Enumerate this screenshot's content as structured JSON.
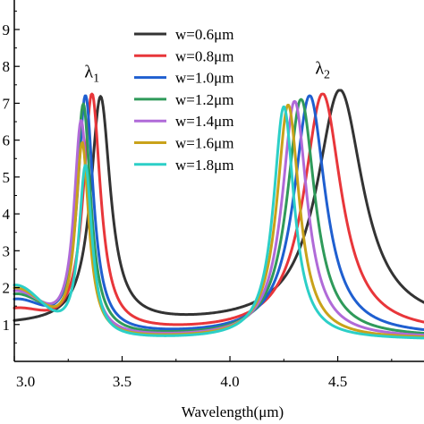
{
  "chart_data": {
    "type": "line",
    "title": "",
    "xlabel": "Wavelength(μm)",
    "ylabel": "",
    "xlim": [
      3.0,
      4.9
    ],
    "ylim": [
      0.0,
      0.98
    ],
    "x_ticks": [
      3.0,
      3.5,
      4.0,
      4.5
    ],
    "x_tick_labels": [
      "3.0",
      "3.5",
      "4.0",
      "4.5"
    ],
    "y_ticks": [
      0.1,
      0.2,
      0.3,
      0.4,
      0.5,
      0.6,
      0.7,
      0.8,
      0.9
    ],
    "y_tick_labels": [
      "1",
      "2",
      "3",
      "4",
      "5",
      "6",
      "7",
      "8",
      "9"
    ],
    "grid": false,
    "legend_position": "top-center",
    "annotations": [
      {
        "text": "λ",
        "sub": "1",
        "x": 3.36,
        "y": 0.77
      },
      {
        "text": "λ",
        "sub": "2",
        "x": 4.43,
        "y": 0.78
      }
    ],
    "series": [
      {
        "name": "w=0.6μm",
        "color": "#333333",
        "base": 0.085,
        "bmin": 3.03,
        "bw": 0.05,
        "p1": {
          "x": 3.4,
          "h": 0.71,
          "w": 0.055
        },
        "p2": {
          "x": 4.51,
          "h": 0.735,
          "w": 0.13
        },
        "v": 0.095
      },
      {
        "name": "w=0.8μm",
        "color": "#e8363a",
        "base": 0.13,
        "bmin": 3.04,
        "bw": 0.05,
        "p1": {
          "x": 3.36,
          "h": 0.72,
          "w": 0.048
        },
        "p2": {
          "x": 4.43,
          "h": 0.725,
          "w": 0.105
        },
        "v": 0.075
      },
      {
        "name": "w=1.0μm",
        "color": "#1f5fd0",
        "base": 0.155,
        "bmin": 3.05,
        "bw": 0.05,
        "p1": {
          "x": 3.33,
          "h": 0.715,
          "w": 0.044
        },
        "p2": {
          "x": 4.37,
          "h": 0.72,
          "w": 0.088
        },
        "v": 0.068
      },
      {
        "name": "w=1.2μm",
        "color": "#2f9a5a",
        "base": 0.17,
        "bmin": 3.06,
        "bw": 0.05,
        "p1": {
          "x": 3.32,
          "h": 0.69,
          "w": 0.042
        },
        "p2": {
          "x": 4.33,
          "h": 0.71,
          "w": 0.078
        },
        "v": 0.064
      },
      {
        "name": "w=1.4μm",
        "color": "#b06ad8",
        "base": 0.18,
        "bmin": 3.07,
        "bw": 0.05,
        "p1": {
          "x": 3.31,
          "h": 0.645,
          "w": 0.04
        },
        "p2": {
          "x": 4.3,
          "h": 0.705,
          "w": 0.07
        },
        "v": 0.062
      },
      {
        "name": "w=1.6μm",
        "color": "#c9a21a",
        "base": 0.19,
        "bmin": 3.08,
        "bw": 0.05,
        "p1": {
          "x": 3.315,
          "h": 0.585,
          "w": 0.038
        },
        "p2": {
          "x": 4.27,
          "h": 0.695,
          "w": 0.063
        },
        "v": 0.06
      },
      {
        "name": "w=1.8μm",
        "color": "#2ccfc7",
        "base": 0.2,
        "bmin": 3.09,
        "bw": 0.05,
        "p1": {
          "x": 3.33,
          "h": 0.525,
          "w": 0.037
        },
        "p2": {
          "x": 4.25,
          "h": 0.69,
          "w": 0.058
        },
        "v": 0.058
      }
    ]
  }
}
